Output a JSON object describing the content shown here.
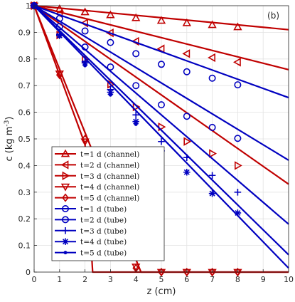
{
  "chart_data": {
    "type": "line",
    "panel_label": "(b)",
    "xlabel": "z (cm)",
    "ylabel": "c (kg m",
    "ylabel_exponent": "-3",
    "ylabel_close": ")",
    "xlim": [
      0,
      10
    ],
    "ylim": [
      0,
      1
    ],
    "xticks": [
      0,
      1,
      2,
      3,
      4,
      5,
      6,
      7,
      8,
      9,
      10
    ],
    "yticks": [
      0,
      0.1,
      0.2,
      0.3,
      0.4,
      0.5,
      0.6,
      0.7,
      0.8,
      0.9,
      1
    ],
    "grid": true,
    "legend_position": "bottom-left",
    "colors": {
      "channel": "#c00000",
      "tube": "#0000c0"
    },
    "series": [
      {
        "name": "t=1 d (channel)",
        "group": "channel",
        "marker": "triangle-up",
        "line": [
          [
            0,
            1
          ],
          [
            10,
            0.91
          ]
        ],
        "markers": [
          [
            0,
            1
          ],
          [
            1,
            0.988
          ],
          [
            2,
            0.976
          ],
          [
            3,
            0.965
          ],
          [
            4,
            0.954
          ],
          [
            5,
            0.944
          ],
          [
            6,
            0.935
          ],
          [
            7,
            0.928
          ],
          [
            8,
            0.92
          ]
        ]
      },
      {
        "name": "t=2 d (channel)",
        "group": "channel",
        "marker": "triangle-left",
        "line": [
          [
            0,
            1
          ],
          [
            10,
            0.76
          ]
        ],
        "markers": [
          [
            0,
            1
          ],
          [
            1,
            0.97
          ],
          [
            2,
            0.935
          ],
          [
            3,
            0.898
          ],
          [
            4,
            0.866
          ],
          [
            5,
            0.838
          ],
          [
            6,
            0.82
          ],
          [
            7,
            0.805
          ],
          [
            8,
            0.788
          ]
        ]
      },
      {
        "name": "t=3 d (channel)",
        "group": "channel",
        "marker": "triangle-right",
        "line": [
          [
            0,
            1
          ],
          [
            10,
            0.33
          ]
        ],
        "markers": [
          [
            0,
            1
          ],
          [
            1,
            0.89
          ],
          [
            2,
            0.8
          ],
          [
            3,
            0.705
          ],
          [
            4,
            0.62
          ],
          [
            5,
            0.545
          ],
          [
            6,
            0.49
          ],
          [
            7,
            0.445
          ],
          [
            8,
            0.4
          ]
        ]
      },
      {
        "name": "t=4 d (channel)",
        "group": "channel",
        "marker": "triangle-down",
        "line": [
          [
            0,
            1
          ],
          [
            4.2,
            0
          ],
          [
            10,
            0
          ]
        ],
        "markers": [
          [
            0,
            1
          ],
          [
            1,
            0.745
          ],
          [
            2,
            0.49
          ],
          [
            3,
            0.245
          ],
          [
            4,
            0.02
          ],
          [
            5,
            0
          ],
          [
            6,
            0
          ],
          [
            7,
            0
          ],
          [
            8,
            0
          ]
        ]
      },
      {
        "name": "t=5 d (channel)",
        "group": "channel",
        "marker": "diamond",
        "line": [
          [
            0,
            1
          ],
          [
            1,
            0.74
          ],
          [
            2,
            0.48
          ],
          [
            2.3,
            0
          ],
          [
            10,
            0
          ]
        ],
        "markers": [
          [
            0,
            1
          ],
          [
            1,
            0.74
          ],
          [
            2,
            0.5
          ],
          [
            4,
            0.015
          ],
          [
            5,
            0
          ],
          [
            6,
            0
          ],
          [
            7,
            0
          ],
          [
            8,
            0
          ]
        ]
      },
      {
        "name": "t=1 d (tube)",
        "group": "tube",
        "marker": "circle",
        "line": [
          [
            0,
            1
          ],
          [
            10,
            0.655
          ]
        ],
        "markers": [
          [
            0,
            1
          ],
          [
            1,
            0.952
          ],
          [
            2,
            0.905
          ],
          [
            3,
            0.862
          ],
          [
            4,
            0.82
          ],
          [
            5,
            0.78
          ],
          [
            6,
            0.752
          ],
          [
            7,
            0.728
          ],
          [
            8,
            0.703
          ]
        ]
      },
      {
        "name": "t=2 d (tube)",
        "group": "tube",
        "marker": "circle",
        "line": [
          [
            0,
            1
          ],
          [
            10,
            0.42
          ]
        ],
        "markers": [
          [
            0,
            1
          ],
          [
            1,
            0.922
          ],
          [
            2,
            0.845
          ],
          [
            3,
            0.77
          ],
          [
            4,
            0.7
          ],
          [
            5,
            0.628
          ],
          [
            6,
            0.585
          ],
          [
            7,
            0.543
          ],
          [
            8,
            0.502
          ]
        ]
      },
      {
        "name": "t=3 d (tube)",
        "group": "tube",
        "marker": "plus",
        "line": [
          [
            0,
            1
          ],
          [
            10,
            0.18
          ]
        ],
        "markers": [
          [
            0,
            1
          ],
          [
            1,
            0.892
          ],
          [
            2,
            0.79
          ],
          [
            3,
            0.685
          ],
          [
            4,
            0.59
          ],
          [
            5,
            0.49
          ],
          [
            6,
            0.43
          ],
          [
            7,
            0.363
          ],
          [
            8,
            0.3
          ]
        ]
      },
      {
        "name": "t=4 d (tube)",
        "group": "tube",
        "marker": "asterisk",
        "line": [
          [
            0,
            1
          ],
          [
            10,
            0.065
          ]
        ],
        "markers": [
          [
            0,
            1
          ],
          [
            1,
            0.888
          ],
          [
            2,
            0.785
          ],
          [
            3,
            0.675
          ],
          [
            4,
            0.565
          ],
          [
            5,
            0.455
          ],
          [
            6,
            0.375
          ],
          [
            7,
            0.295
          ],
          [
            8,
            0.222
          ]
        ]
      },
      {
        "name": "t=5 d (tube)",
        "group": "tube",
        "marker": "dot",
        "line": [
          [
            0,
            1
          ],
          [
            10,
            0.015
          ]
        ],
        "markers": [
          [
            0,
            1
          ],
          [
            1,
            0.885
          ],
          [
            2,
            0.775
          ],
          [
            3,
            0.665
          ],
          [
            4,
            0.555
          ],
          [
            5,
            0.45
          ]
        ]
      }
    ]
  }
}
